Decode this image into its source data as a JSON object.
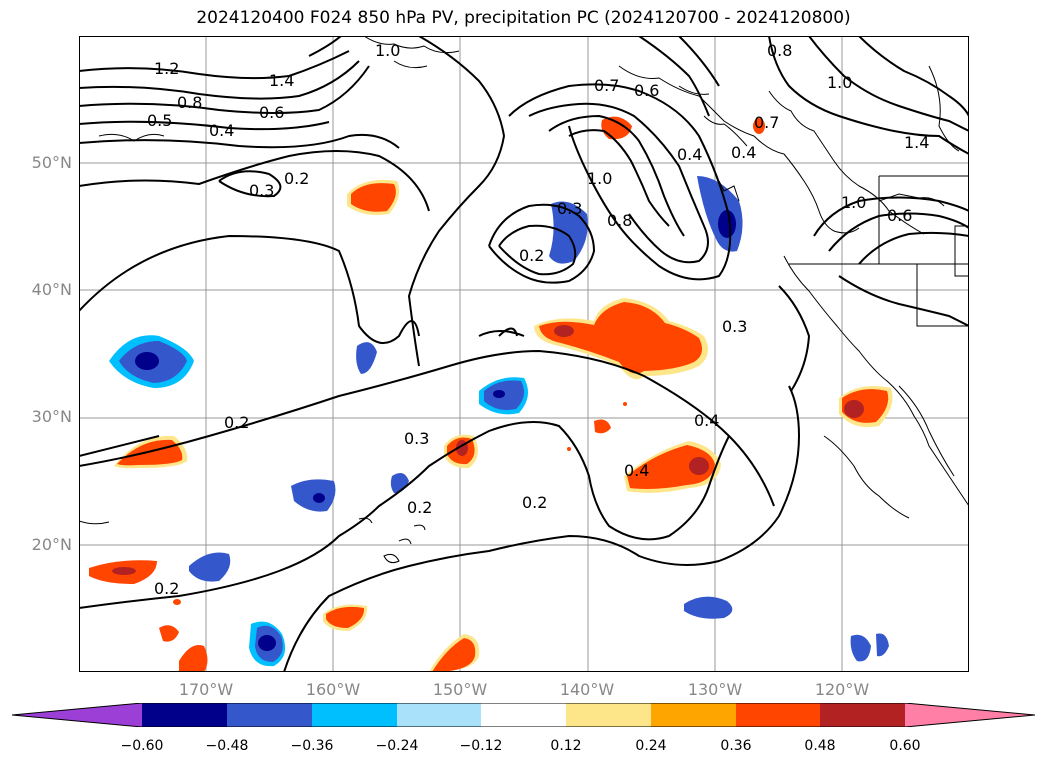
{
  "title": "2024120400 F024 850 hPa PV, precipitation PC (2024120700 - 2024120800)",
  "map": {
    "lat_labels": [
      "50°N",
      "40°N",
      "30°N",
      "20°N"
    ],
    "lon_labels": [
      "170°W",
      "160°W",
      "150°W",
      "140°W",
      "130°W",
      "120°W"
    ],
    "contour_labels": [
      "1.2",
      "1.4",
      "0.8",
      "0.5",
      "0.4",
      "0.6",
      "1.0",
      "0.7",
      "0.6",
      "0.8",
      "1.0",
      "1.4",
      "0.7",
      "0.4",
      "0.4",
      "0.3",
      "0.2",
      "1.0",
      "0.8",
      "0.3",
      "0.2",
      "1.0",
      "0.6",
      "0.3",
      "0.2",
      "0.3",
      "0.2",
      "0.4",
      "0.2",
      "0.4",
      "0.2"
    ]
  },
  "colorbar": {
    "labels": [
      "−0.60",
      "−0.48",
      "−0.36",
      "−0.24",
      "−0.12",
      "0.12",
      "0.24",
      "0.36",
      "0.48",
      "0.60"
    ],
    "colors": [
      "#9b3fd6",
      "#00008b",
      "#3557cc",
      "#00bfff",
      "#a9e1fa",
      "#ffffff",
      "#fde68a",
      "#ffa500",
      "#ff4500",
      "#b22222",
      "#ff7fa7"
    ]
  },
  "colors": {
    "neg_strong": "#00008b",
    "neg_mid": "#3557cc",
    "neg_light": "#00bfff",
    "pos_light": "#fde68a",
    "pos_mid": "#ff4500",
    "pos_strong": "#b22222",
    "grid": "#999999"
  }
}
